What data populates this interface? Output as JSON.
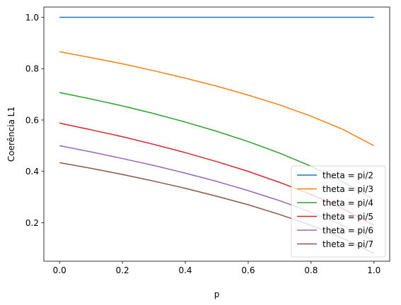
{
  "chart_data": {
    "type": "line",
    "xlabel": "p",
    "ylabel": "Coerência L1",
    "xlim": [
      -0.05,
      1.05
    ],
    "ylim": [
      0.05,
      1.04
    ],
    "xticks": [
      0.0,
      0.2,
      0.4,
      0.6,
      0.8,
      1.0
    ],
    "xtick_labels": [
      "0.0",
      "0.2",
      "0.4",
      "0.6",
      "0.8",
      "1.0"
    ],
    "yticks": [
      0.2,
      0.4,
      0.6,
      0.8,
      1.0
    ],
    "ytick_labels": [
      "0.2",
      "0.4",
      "0.6",
      "0.8",
      "1.0"
    ],
    "grid": false,
    "legend_position": "bottom-right",
    "x": [
      0.0,
      0.1,
      0.2,
      0.3,
      0.4,
      0.5,
      0.6,
      0.7,
      0.8,
      0.9,
      1.0
    ],
    "series": [
      {
        "name": "theta = pi/2",
        "color": "#1f77b4",
        "values": [
          1.0,
          1.0,
          1.0,
          1.0,
          1.0,
          1.0,
          1.0,
          1.0,
          1.0,
          1.0,
          1.0
        ]
      },
      {
        "name": "theta = pi/3",
        "color": "#ff7f0e",
        "values": [
          0.866,
          0.843,
          0.819,
          0.792,
          0.763,
          0.732,
          0.697,
          0.659,
          0.615,
          0.564,
          0.5
        ]
      },
      {
        "name": "theta = pi/4",
        "color": "#2ca02c",
        "values": [
          0.707,
          0.682,
          0.655,
          0.625,
          0.592,
          0.556,
          0.516,
          0.471,
          0.42,
          0.36,
          0.29
        ]
      },
      {
        "name": "theta = pi/5",
        "color": "#d62728",
        "values": [
          0.588,
          0.562,
          0.535,
          0.505,
          0.473,
          0.438,
          0.4,
          0.357,
          0.31,
          0.255,
          0.19
        ]
      },
      {
        "name": "theta = pi/6",
        "color": "#9467bd",
        "values": [
          0.5,
          0.476,
          0.45,
          0.423,
          0.393,
          0.361,
          0.325,
          0.286,
          0.241,
          0.19,
          0.13
        ]
      },
      {
        "name": "theta = pi/7",
        "color": "#8c564b",
        "values": [
          0.434,
          0.412,
          0.388,
          0.362,
          0.334,
          0.303,
          0.27,
          0.232,
          0.19,
          0.14,
          0.08
        ]
      }
    ]
  }
}
